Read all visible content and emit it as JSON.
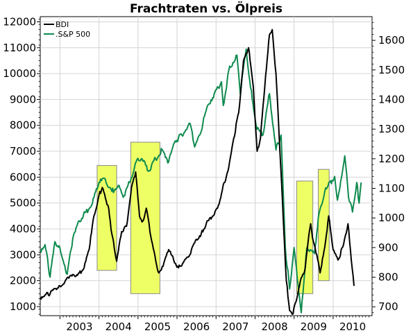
{
  "chart_data": {
    "type": "line",
    "title": "Frachtraten vs. Ölpreis",
    "x_axis": {
      "type": "date",
      "range": [
        "2002-07-01",
        "2010-12-31"
      ],
      "tick_labels": [
        "2003",
        "2004",
        "2005",
        "2006",
        "2007",
        "2008",
        "2009",
        "2010"
      ],
      "grid": true
    },
    "y_left": {
      "range": [
        650,
        12200
      ],
      "ticks": [
        1000,
        2000,
        3000,
        4000,
        5000,
        6000,
        7000,
        8000,
        9000,
        10000,
        11000,
        12000
      ],
      "tick_labels": [
        "1000",
        "2000",
        "3000",
        "4000",
        "5000",
        "6000",
        "7000",
        "8000",
        "9000",
        "10000",
        "11000",
        "12000"
      ],
      "grid": true
    },
    "y_right": {
      "range": [
        670,
        1680
      ],
      "ticks": [
        700,
        800,
        900,
        1000,
        1100,
        1200,
        1300,
        1400,
        1500,
        1600
      ],
      "tick_labels": [
        "700",
        "800",
        "900",
        "1000",
        "1100",
        "1200",
        "1300",
        "1400",
        "1500",
        "1600"
      ]
    },
    "legend": {
      "position": "top-left",
      "entries": [
        "BDI",
        ".S&P 500"
      ]
    },
    "series": [
      {
        "name": "BDI",
        "axis": "left",
        "color": "#000000",
        "points": [
          [
            "2002-07-01",
            1350
          ],
          [
            "2002-08-15",
            1450
          ],
          [
            "2002-10-01",
            1500
          ],
          [
            "2002-11-15",
            1700
          ],
          [
            "2003-01-01",
            1800
          ],
          [
            "2003-02-15",
            1950
          ],
          [
            "2003-04-01",
            2150
          ],
          [
            "2003-05-15",
            2200
          ],
          [
            "2003-07-01",
            2300
          ],
          [
            "2003-08-15",
            2500
          ],
          [
            "2003-10-01",
            3200
          ],
          [
            "2003-11-15",
            4500
          ],
          [
            "2004-01-01",
            5300
          ],
          [
            "2004-02-01",
            5600
          ],
          [
            "2004-03-01",
            5200
          ],
          [
            "2004-04-01",
            4800
          ],
          [
            "2004-05-01",
            3800
          ],
          [
            "2004-06-15",
            2750
          ],
          [
            "2004-08-01",
            3900
          ],
          [
            "2004-09-15",
            4100
          ],
          [
            "2004-11-01",
            5600
          ],
          [
            "2004-12-10",
            6200
          ],
          [
            "2005-01-15",
            4500
          ],
          [
            "2005-02-15",
            4300
          ],
          [
            "2005-03-20",
            4800
          ],
          [
            "2005-05-01",
            3700
          ],
          [
            "2005-06-15",
            2800
          ],
          [
            "2005-07-15",
            2300
          ],
          [
            "2005-09-01",
            2700
          ],
          [
            "2005-10-15",
            3200
          ],
          [
            "2005-12-01",
            2800
          ],
          [
            "2006-01-15",
            2500
          ],
          [
            "2006-03-01",
            2700
          ],
          [
            "2006-05-01",
            3000
          ],
          [
            "2006-07-01",
            3600
          ],
          [
            "2006-08-15",
            3800
          ],
          [
            "2006-10-01",
            4200
          ],
          [
            "2006-12-01",
            4500
          ],
          [
            "2007-01-15",
            4800
          ],
          [
            "2007-03-01",
            5500
          ],
          [
            "2007-05-01",
            6400
          ],
          [
            "2007-06-15",
            7500
          ],
          [
            "2007-08-01",
            8500
          ],
          [
            "2007-09-15",
            10500
          ],
          [
            "2007-11-01",
            11000
          ],
          [
            "2007-12-15",
            9500
          ],
          [
            "2008-01-20",
            7000
          ],
          [
            "2008-02-20",
            7500
          ],
          [
            "2008-04-01",
            9500
          ],
          [
            "2008-05-15",
            11500
          ],
          [
            "2008-06-10",
            11700
          ],
          [
            "2008-07-15",
            10000
          ],
          [
            "2008-08-15",
            7500
          ],
          [
            "2008-09-20",
            4500
          ],
          [
            "2008-10-20",
            2000
          ],
          [
            "2008-11-20",
            850
          ],
          [
            "2008-12-15",
            700
          ],
          [
            "2009-01-20",
            1200
          ],
          [
            "2009-03-01",
            2000
          ],
          [
            "2009-04-15",
            2500
          ],
          [
            "2009-05-20",
            3800
          ],
          [
            "2009-06-05",
            4200
          ],
          [
            "2009-07-01",
            3500
          ],
          [
            "2009-08-01",
            3000
          ],
          [
            "2009-09-01",
            2300
          ],
          [
            "2009-10-15",
            3300
          ],
          [
            "2009-11-20",
            4500
          ],
          [
            "2010-01-01",
            3200
          ],
          [
            "2010-02-15",
            2800
          ],
          [
            "2010-04-01",
            3300
          ],
          [
            "2010-05-20",
            4200
          ],
          [
            "2010-06-20",
            2800
          ],
          [
            "2010-07-15",
            1800
          ]
        ]
      },
      {
        "name": ".S&P 500",
        "axis": "right",
        "color": "#0e8a4e",
        "points": [
          [
            "2002-07-01",
            890
          ],
          [
            "2002-08-15",
            910
          ],
          [
            "2002-10-01",
            800
          ],
          [
            "2002-11-15",
            920
          ],
          [
            "2003-01-01",
            900
          ],
          [
            "2003-03-10",
            810
          ],
          [
            "2003-05-01",
            930
          ],
          [
            "2003-07-01",
            990
          ],
          [
            "2003-09-01",
            1020
          ],
          [
            "2003-11-01",
            1050
          ],
          [
            "2004-01-01",
            1120
          ],
          [
            "2004-03-01",
            1130
          ],
          [
            "2004-05-01",
            1090
          ],
          [
            "2004-07-01",
            1110
          ],
          [
            "2004-08-15",
            1070
          ],
          [
            "2004-10-15",
            1120
          ],
          [
            "2004-12-15",
            1190
          ],
          [
            "2005-02-01",
            1200
          ],
          [
            "2005-04-15",
            1160
          ],
          [
            "2005-06-15",
            1200
          ],
          [
            "2005-08-15",
            1230
          ],
          [
            "2005-10-15",
            1190
          ],
          [
            "2005-12-15",
            1260
          ],
          [
            "2006-02-15",
            1280
          ],
          [
            "2006-05-01",
            1320
          ],
          [
            "2006-06-15",
            1240
          ],
          [
            "2006-08-01",
            1280
          ],
          [
            "2006-10-15",
            1380
          ],
          [
            "2006-12-15",
            1420
          ],
          [
            "2007-02-20",
            1460
          ],
          [
            "2007-03-10",
            1380
          ],
          [
            "2007-05-01",
            1500
          ],
          [
            "2007-07-15",
            1550
          ],
          [
            "2007-08-15",
            1420
          ],
          [
            "2007-10-10",
            1570
          ],
          [
            "2007-11-20",
            1440
          ],
          [
            "2008-01-20",
            1300
          ],
          [
            "2008-03-15",
            1280
          ],
          [
            "2008-05-15",
            1420
          ],
          [
            "2008-07-15",
            1230
          ],
          [
            "2008-09-01",
            1280
          ],
          [
            "2008-10-10",
            900
          ],
          [
            "2008-11-20",
            760
          ],
          [
            "2009-01-01",
            900
          ],
          [
            "2009-03-09",
            680
          ],
          [
            "2009-05-01",
            900
          ],
          [
            "2009-07-10",
            880
          ],
          [
            "2009-08-15",
            1000
          ],
          [
            "2009-10-15",
            1090
          ],
          [
            "2010-01-15",
            1140
          ],
          [
            "2010-02-10",
            1060
          ],
          [
            "2010-04-20",
            1210
          ],
          [
            "2010-05-25",
            1070
          ],
          [
            "2010-07-01",
            1020
          ],
          [
            "2010-08-10",
            1120
          ],
          [
            "2010-09-01",
            1050
          ],
          [
            "2010-09-20",
            1120
          ]
        ]
      }
    ],
    "highlight_boxes": [
      {
        "x": [
          "2003-12-15",
          "2004-06-15"
        ],
        "y": [
          2400,
          6450
        ]
      },
      {
        "x": [
          "2004-10-25",
          "2005-07-25"
        ],
        "y": [
          1500,
          7350
        ]
      },
      {
        "x": [
          "2009-01-25",
          "2009-06-25"
        ],
        "y": [
          1500,
          5850
        ]
      },
      {
        "x": [
          "2009-08-15",
          "2009-11-25"
        ],
        "y": [
          2000,
          6300
        ]
      }
    ],
    "colors": {
      "highlight_fill": "#eeff66",
      "highlight_stroke": "#888888",
      "grid": "#d4d4d4",
      "frame": "#000000"
    }
  }
}
